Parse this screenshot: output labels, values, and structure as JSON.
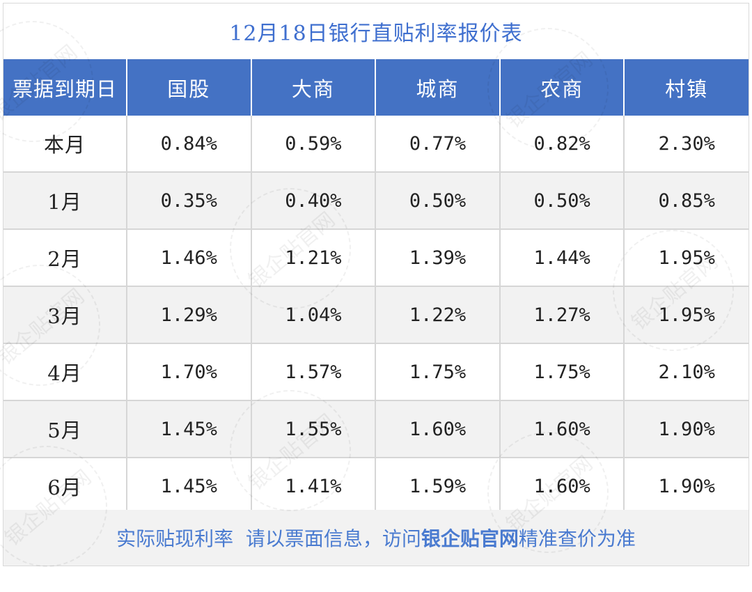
{
  "title": "12月18日银行直贴利率报价表",
  "columns": [
    "票据到期日",
    "国股",
    "大商",
    "城商",
    "农商",
    "村镇"
  ],
  "rows": [
    {
      "label": "本月",
      "rates": [
        "0.84%",
        "0.59%",
        "0.77%",
        "0.82%",
        "2.30%"
      ]
    },
    {
      "label": "1月",
      "rates": [
        "0.35%",
        "0.40%",
        "0.50%",
        "0.50%",
        "0.85%"
      ]
    },
    {
      "label": "2月",
      "rates": [
        "1.46%",
        "1.21%",
        "1.39%",
        "1.44%",
        "1.95%"
      ]
    },
    {
      "label": "3月",
      "rates": [
        "1.29%",
        "1.04%",
        "1.22%",
        "1.27%",
        "1.95%"
      ]
    },
    {
      "label": "4月",
      "rates": [
        "1.70%",
        "1.57%",
        "1.75%",
        "1.75%",
        "2.10%"
      ]
    },
    {
      "label": "5月",
      "rates": [
        "1.45%",
        "1.55%",
        "1.60%",
        "1.60%",
        "1.90%"
      ]
    },
    {
      "label": "6月",
      "rates": [
        "1.45%",
        "1.41%",
        "1.59%",
        "1.60%",
        "1.90%"
      ]
    }
  ],
  "footer": {
    "text_before": "实际贴现利率  请以票面信息，访问",
    "brand": "银企贴官网",
    "text_after": "精准查价为准"
  },
  "watermark": "银企贴官网",
  "colors": {
    "header_bg": "#4472c4",
    "title": "#3f6fcf",
    "footer_text": "#4a7bd0",
    "alt_row": "#f2f2f2"
  }
}
